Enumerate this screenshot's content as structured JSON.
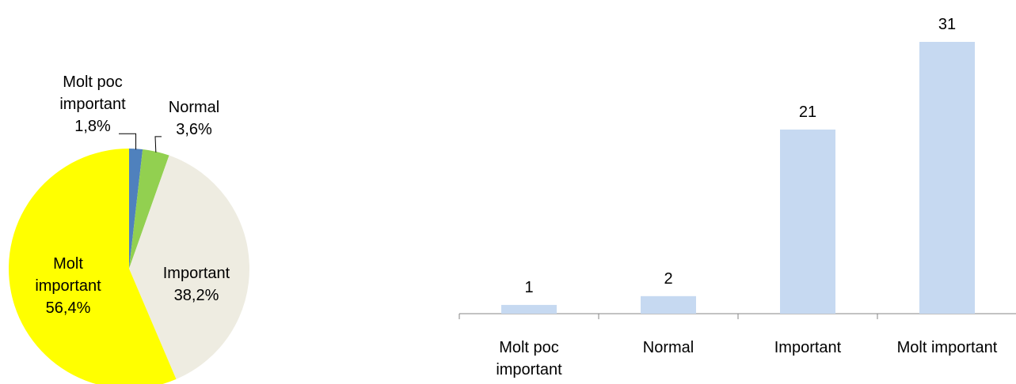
{
  "chart_data": [
    {
      "type": "pie",
      "categories": [
        "Molt poc important",
        "Normal",
        "Important",
        "Molt important"
      ],
      "values": [
        1.8,
        3.6,
        38.2,
        56.4
      ],
      "value_labels": [
        "1,8%",
        "3,6%",
        "38,2%",
        "56,4%"
      ],
      "label_lines": [
        [
          "Molt poc",
          "important",
          "1,8%"
        ],
        [
          "Normal",
          "3,6%"
        ],
        [
          "Important",
          "38,2%"
        ],
        [
          "Molt",
          "important",
          "56,4%"
        ]
      ],
      "colors": [
        "#4f81bd",
        "#92d050",
        "#eeece1",
        "#ffff00"
      ],
      "title": "",
      "legend": "none"
    },
    {
      "type": "bar",
      "categories": [
        "Molt poc important",
        "Normal",
        "Important",
        "Molt important"
      ],
      "category_lines": [
        [
          "Molt poc",
          "important"
        ],
        [
          "Normal"
        ],
        [
          "Important"
        ],
        [
          "Molt important"
        ]
      ],
      "values": [
        1,
        2,
        21,
        31
      ],
      "data_labels": [
        "1",
        "2",
        "21",
        "31"
      ],
      "color": "#c6d9f1",
      "axis_color": "#868686",
      "title": "",
      "xlabel": "",
      "ylabel": "",
      "y_axis_visible": false,
      "grid": false,
      "legend": "none"
    }
  ]
}
